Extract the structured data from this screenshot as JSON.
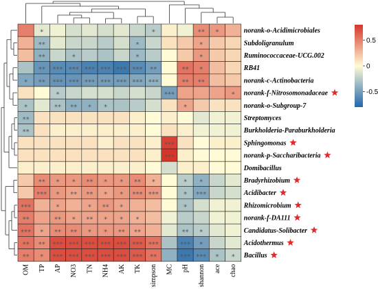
{
  "chart_data": {
    "type": "heatmap",
    "rows": [
      "norank-o-Acidimicrobiales",
      "Subdoligranulum",
      "Ruminococcaceae-UCG.002",
      "RB41",
      "norank-c-Actinobacteria",
      "norank-f-Nitrosomonadaceae",
      "norank-o-Subgroup-7",
      "Streptomyces",
      "Burkholderia-Paraburkholderia",
      "Sphingomonas",
      "norank-p-Saccharibacteria",
      "Domibacillus",
      "Bradyrhizobium",
      "Acidibacter",
      "Rhizomicrobium",
      "norank-f-DA111",
      "Candidatus-Solibacter",
      "Acidothermus",
      "Bacillus"
    ],
    "starred_rows": [
      5,
      9,
      10,
      12,
      13,
      14,
      15,
      16,
      17,
      18
    ],
    "columns": [
      "OM",
      "TP",
      "AP",
      "NO3",
      "TN",
      "NH4",
      "AK",
      "TK",
      "simpson",
      "MC",
      "pH",
      "shannon",
      "ace",
      "chao"
    ],
    "values": [
      [
        0.5,
        -0.1,
        -0.05,
        -0.15,
        -0.1,
        -0.15,
        -0.1,
        -0.2,
        -0.25,
        0.05,
        -0.05,
        0.45,
        0.4,
        0.3
      ],
      [
        0.3,
        -0.35,
        -0.1,
        -0.2,
        -0.2,
        -0.25,
        -0.15,
        -0.35,
        -0.2,
        0.1,
        0.2,
        0.35,
        0.2,
        0.15
      ],
      [
        0.25,
        -0.4,
        -0.2,
        -0.3,
        -0.25,
        -0.3,
        -0.2,
        -0.35,
        -0.25,
        0.0,
        0.2,
        0.4,
        0.2,
        0.15
      ],
      [
        -0.3,
        -0.55,
        -0.6,
        -0.6,
        -0.65,
        -0.65,
        -0.7,
        -0.6,
        -0.5,
        0.0,
        0.55,
        0.5,
        0.25,
        0.15
      ],
      [
        -0.45,
        -0.5,
        -0.55,
        -0.55,
        -0.5,
        -0.5,
        -0.5,
        -0.45,
        -0.4,
        0.0,
        0.5,
        0.5,
        0.25,
        0.2
      ],
      [
        0.1,
        0.0,
        -0.25,
        -0.2,
        -0.15,
        -0.15,
        -0.2,
        -0.15,
        -0.2,
        -0.5,
        0.35,
        0.35,
        0.35,
        0.4
      ],
      [
        -0.3,
        -0.1,
        -0.3,
        -0.4,
        -0.4,
        -0.3,
        -0.3,
        -0.25,
        -0.15,
        0.1,
        0.35,
        0.2,
        0.1,
        0.1
      ],
      [
        -0.35,
        0.1,
        0.1,
        0.1,
        0.1,
        0.1,
        0.1,
        0.05,
        0.0,
        0.05,
        0.0,
        -0.1,
        -0.05,
        -0.05
      ],
      [
        -0.3,
        0.1,
        0.05,
        0.05,
        0.05,
        0.05,
        0.05,
        0.05,
        0.0,
        0.1,
        0.05,
        -0.05,
        -0.05,
        -0.05
      ],
      [
        0.1,
        0.1,
        0.1,
        0.1,
        0.1,
        0.05,
        0.1,
        0.1,
        0.05,
        0.75,
        0.1,
        0.0,
        0.05,
        0.05
      ],
      [
        0.1,
        0.1,
        0.1,
        0.1,
        0.1,
        0.1,
        0.1,
        0.1,
        0.05,
        0.8,
        0.05,
        0.0,
        0.0,
        0.0
      ],
      [
        0.05,
        0.05,
        0.05,
        0.05,
        0.05,
        0.05,
        0.05,
        0.05,
        0.0,
        -0.15,
        0.05,
        0.05,
        0.0,
        0.0
      ],
      [
        0.2,
        0.45,
        0.4,
        0.4,
        0.45,
        0.4,
        0.4,
        0.45,
        0.3,
        0.0,
        -0.25,
        -0.4,
        -0.2,
        -0.1
      ],
      [
        0.2,
        0.5,
        0.4,
        0.35,
        0.4,
        0.35,
        0.4,
        0.45,
        0.4,
        0.0,
        -0.3,
        -0.45,
        -0.2,
        -0.15
      ],
      [
        0.55,
        0.3,
        0.35,
        0.3,
        0.35,
        0.4,
        0.35,
        0.3,
        0.25,
        0.0,
        -0.3,
        -0.15,
        -0.05,
        -0.05
      ],
      [
        0.5,
        0.35,
        0.4,
        0.35,
        0.35,
        0.35,
        0.35,
        0.3,
        0.25,
        -0.05,
        -0.25,
        -0.2,
        -0.05,
        -0.05
      ],
      [
        0.55,
        0.35,
        0.45,
        0.45,
        0.4,
        0.4,
        0.4,
        0.35,
        0.3,
        -0.1,
        -0.3,
        -0.25,
        -0.1,
        -0.05
      ],
      [
        0.55,
        0.45,
        0.7,
        0.7,
        0.7,
        0.7,
        0.7,
        0.65,
        0.55,
        -0.3,
        -0.65,
        -0.5,
        -0.2,
        -0.1
      ],
      [
        0.5,
        0.45,
        0.7,
        0.7,
        0.7,
        0.7,
        0.7,
        0.65,
        0.55,
        -0.4,
        -0.7,
        -0.6,
        -0.3,
        -0.2
      ]
    ],
    "significance": [
      [
        "",
        "*",
        "",
        "",
        "",
        "",
        "",
        "",
        "*",
        "",
        "",
        "**",
        "*",
        ""
      ],
      [
        "",
        "**",
        "",
        "",
        "",
        "",
        "",
        "*",
        "",
        "",
        "",
        "*",
        "",
        ""
      ],
      [
        "",
        "**",
        "",
        "*",
        "",
        "",
        "",
        "*",
        "",
        "",
        "",
        "*",
        "",
        ""
      ],
      [
        "",
        "**",
        "***",
        "***",
        "***",
        "***",
        "***",
        "***",
        "**",
        "",
        "**",
        "*",
        "",
        ""
      ],
      [
        "*",
        "**",
        "***",
        "***",
        "***",
        "***",
        "***",
        "***",
        "***",
        "",
        "**",
        "**",
        "",
        ""
      ],
      [
        "",
        "",
        "*",
        "",
        "",
        "",
        "",
        "",
        "",
        "***",
        "",
        "",
        "",
        "*"
      ],
      [
        "*",
        "",
        "**",
        "**",
        "*",
        "*",
        "",
        "",
        "",
        "",
        "*",
        "",
        "",
        ""
      ],
      [
        "**",
        "",
        "",
        "",
        "",
        "",
        "",
        "",
        "",
        "",
        "",
        "",
        "",
        ""
      ],
      [
        "**",
        "",
        "",
        "",
        "",
        "",
        "",
        "",
        "",
        "",
        "",
        "",
        "",
        ""
      ],
      [
        "",
        "",
        "",
        "",
        "",
        "",
        "",
        "",
        "",
        "***",
        "",
        "",
        "",
        ""
      ],
      [
        "",
        "",
        "",
        "",
        "",
        "",
        "",
        "",
        "",
        "***",
        "",
        "",
        "",
        ""
      ],
      [
        "",
        "",
        "",
        "",
        "",
        "",
        "",
        "",
        "",
        "",
        "",
        "",
        "",
        ""
      ],
      [
        "",
        "**",
        "*",
        "*",
        "**",
        "*",
        "*",
        "**",
        "*",
        "",
        "*",
        "*",
        "",
        ""
      ],
      [
        "",
        "***",
        "*",
        "**",
        "**",
        "*",
        "*",
        "***",
        "***",
        "",
        "*",
        "***",
        "",
        ""
      ],
      [
        "***",
        "",
        "*",
        "",
        "*",
        "**",
        "*",
        "",
        "",
        "",
        "*",
        "",
        "",
        ""
      ],
      [
        "**",
        "",
        "**",
        "*",
        "**",
        "*",
        "*",
        "*",
        "",
        "",
        "",
        "",
        "",
        ""
      ],
      [
        "***",
        "*",
        "**",
        "**",
        "*",
        "*",
        "**",
        "**",
        "",
        "",
        "**",
        "*",
        "",
        ""
      ],
      [
        "**",
        "**",
        "***",
        "***",
        "***",
        "***",
        "***",
        "***",
        "***",
        "",
        "***",
        "*",
        "",
        ""
      ],
      [
        "**",
        "*",
        "***",
        "***",
        "***",
        "***",
        "***",
        "***",
        "**",
        "",
        "***",
        "***",
        "*",
        "*"
      ]
    ],
    "colorbar": {
      "ticks": [
        0.5,
        0.0,
        -0.5
      ],
      "tick_labels": [
        "0.5",
        "0",
        "-0.5"
      ]
    },
    "colors": {
      "low": "#2166ac",
      "mid": "#fffbd6",
      "high": "#d6352b",
      "star": "#e02b2b"
    }
  }
}
